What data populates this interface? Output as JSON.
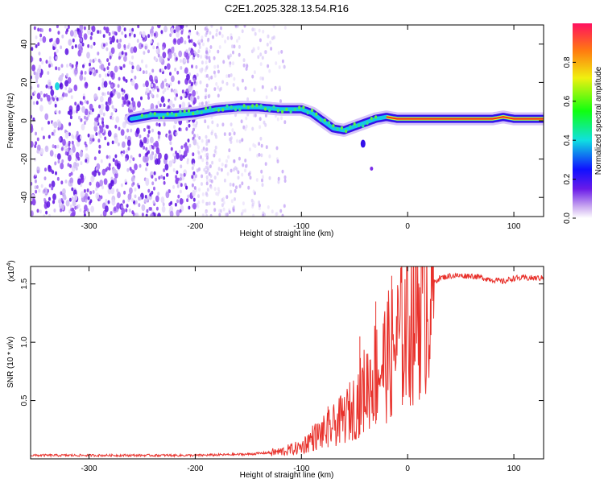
{
  "title": "C2E1.2025.328.13.54.R16",
  "chart_data": [
    {
      "type": "heatmap",
      "title": "C2E1.2025.328.13.54.R16",
      "xlabel": "Height of straight line (km)",
      "ylabel": "Frequency (Hz)",
      "xlim": [
        -355,
        128
      ],
      "ylim": [
        -50,
        50
      ],
      "xticks": [
        -300,
        -200,
        -100,
        0,
        100
      ],
      "yticks": [
        -40,
        -20,
        0,
        20,
        40
      ],
      "ridge": {
        "x": [
          -260,
          -240,
          -220,
          -200,
          -180,
          -160,
          -140,
          -120,
          -100,
          -90,
          -80,
          -70,
          -60,
          -50,
          -40,
          -30,
          -20,
          -10,
          0,
          20,
          40,
          60,
          80,
          90,
          100,
          128
        ],
        "y": [
          1,
          3,
          3,
          4,
          6,
          7,
          7,
          6,
          6,
          4,
          0,
          -4,
          -5,
          -3,
          -1,
          1,
          2,
          1,
          1,
          1,
          1,
          1,
          1,
          2,
          1,
          1
        ]
      },
      "colorbar": {
        "label": "Normalized spectral amplitude",
        "range": [
          0,
          1
        ],
        "ticks": [
          0.0,
          0.2,
          0.4,
          0.6,
          0.8
        ],
        "tick_labels": [
          "0.0",
          "0.2",
          "0.4",
          "0.6",
          "0.8"
        ]
      }
    },
    {
      "type": "line",
      "xlabel": "Height of straight line (km)",
      "ylabel": "SNR (10 * v/v)",
      "multiplier": "(x10",
      "multiplier_exp": "4",
      "multiplier_close": ")",
      "xlim": [
        -355,
        128
      ],
      "ylim": [
        0,
        1.65
      ],
      "xticks": [
        -300,
        -200,
        -100,
        0,
        100
      ],
      "yticks": [
        0.5,
        1.0,
        1.5
      ],
      "ytick_labels": [
        "0.5",
        "1.0",
        "1.5"
      ],
      "color": "#e8312b",
      "envelope": {
        "x": [
          -355,
          -200,
          -150,
          -120,
          -100,
          -90,
          -80,
          -70,
          -60,
          -50,
          -40,
          -30,
          -20,
          -10,
          0,
          10,
          20,
          30,
          40,
          60,
          90,
          100,
          128
        ],
        "y": [
          0.03,
          0.03,
          0.04,
          0.06,
          0.1,
          0.18,
          0.22,
          0.28,
          0.35,
          0.45,
          0.6,
          0.75,
          0.85,
          1.0,
          1.15,
          1.35,
          1.48,
          1.55,
          1.57,
          1.57,
          1.52,
          1.55,
          1.55
        ]
      },
      "spikes": [
        {
          "x": -15,
          "y": 1.57
        },
        {
          "x": -30,
          "y": 1.35
        },
        {
          "x": -45,
          "y": 1.05
        },
        {
          "x": -75,
          "y": 0.45
        }
      ]
    }
  ]
}
